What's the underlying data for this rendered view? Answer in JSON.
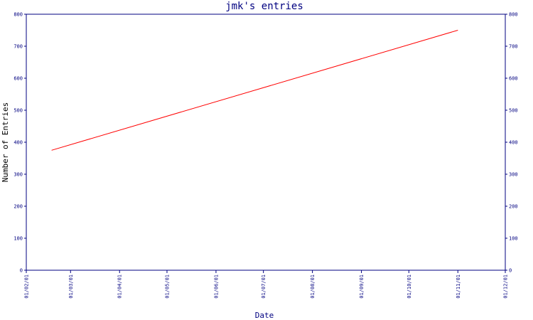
{
  "chart_data": {
    "type": "line",
    "title": "jmk's entries",
    "xlabel": "Date",
    "ylabel": "Number of Entries",
    "x_ticks": [
      "01/02/01",
      "01/03/01",
      "01/04/01",
      "01/05/01",
      "01/06/01",
      "01/07/01",
      "01/08/01",
      "01/09/01",
      "01/10/01",
      "01/11/01",
      "01/12/01"
    ],
    "y_ticks": [
      0,
      100,
      200,
      300,
      400,
      500,
      600,
      700,
      800
    ],
    "ylim": [
      0,
      800
    ],
    "grid": false,
    "series": [
      {
        "color": "#ff0000",
        "points": [
          {
            "x": "2001-02-17",
            "y": 375
          },
          {
            "x": "2001-11-01",
            "y": 750
          }
        ]
      }
    ],
    "colors": {
      "axis": "#000080",
      "line": "#ff0000"
    }
  }
}
